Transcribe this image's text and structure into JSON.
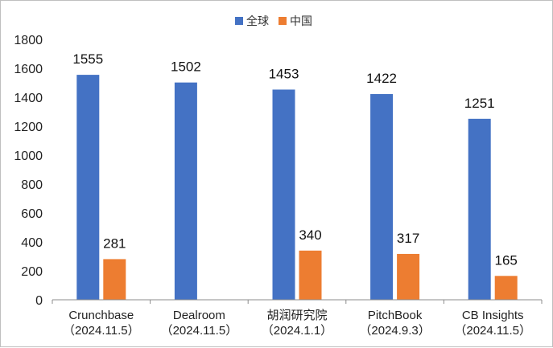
{
  "chart_data": {
    "type": "bar",
    "categories": [
      "Crunchbase",
      "Dealroom",
      "胡润研究院",
      "PitchBook",
      "CB Insights"
    ],
    "category_dates": [
      "（2024.11.5）",
      "（2024.11.5）",
      "（2024.1.1）",
      "（2024.9.3）",
      "（2024.11.5）"
    ],
    "series": [
      {
        "name": "全球",
        "color": "#4472C4",
        "values": [
          1555,
          1502,
          1453,
          1422,
          1251
        ]
      },
      {
        "name": "中国",
        "color": "#ED7D31",
        "values": [
          281,
          null,
          340,
          317,
          165
        ]
      }
    ],
    "ylim": [
      0,
      1800
    ],
    "yticks": [
      0,
      200,
      400,
      600,
      800,
      1000,
      1200,
      1400,
      1600,
      1800
    ],
    "legend_position": "top-center",
    "grid": false
  }
}
